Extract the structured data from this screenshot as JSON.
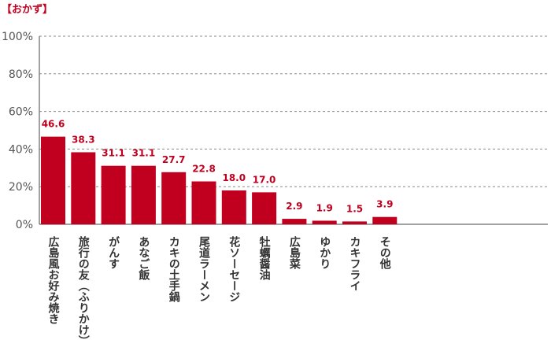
{
  "chart_data": {
    "type": "bar",
    "title": "【おかず】",
    "categories": [
      "広島風お好み焼き",
      "旅行の友（ふりかけ）",
      "がんす",
      "あなご飯",
      "カキの土手鍋",
      "尾道ラーメン",
      "花ソーセージ",
      "牡蠣醤油",
      "広島菜",
      "ゆかり",
      "カキフライ",
      "その他"
    ],
    "values": [
      46.6,
      38.3,
      31.1,
      31.1,
      27.7,
      22.8,
      18.0,
      17.0,
      2.9,
      1.9,
      1.5,
      3.9
    ],
    "value_labels": [
      "46.6",
      "38.3",
      "31.1",
      "31.1",
      "27.7",
      "22.8",
      "18.0",
      "17.0",
      "2.9",
      "1.9",
      "1.5",
      "3.9"
    ],
    "ylim": [
      0,
      100
    ],
    "yticks": [
      0,
      20,
      40,
      60,
      80,
      100
    ],
    "ytick_labels": [
      "0%",
      "20%",
      "40%",
      "60%",
      "80%",
      "100%"
    ],
    "xlabel": "",
    "ylabel": "",
    "grid": true,
    "grid_style": "dashed",
    "bar_color": "#c0001e",
    "label_color": "#c0001e"
  }
}
